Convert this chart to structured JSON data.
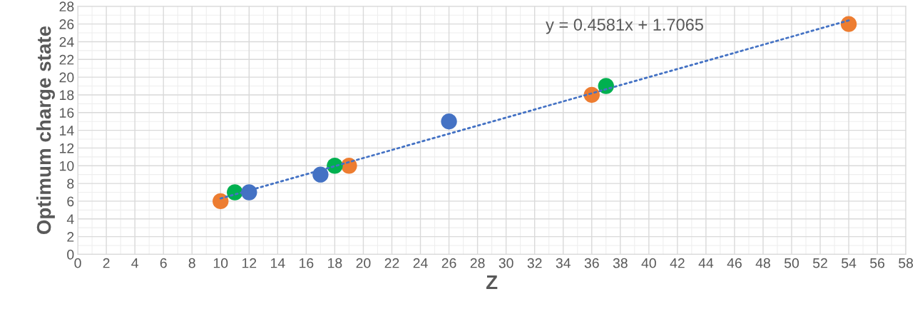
{
  "chart_data": {
    "type": "scatter",
    "xlabel": "Z",
    "ylabel": "Optimum charge state",
    "series": [
      {
        "color": "#ed7d31",
        "x": [
          10,
          19,
          36,
          54
        ],
        "values": [
          6,
          10,
          18,
          26
        ]
      },
      {
        "color": "#00b050",
        "x": [
          11,
          18,
          37
        ],
        "values": [
          7,
          10,
          19
        ]
      },
      {
        "color": "#4472c4",
        "x": [
          12,
          17,
          26
        ],
        "values": [
          7,
          9,
          15
        ]
      },
      {
        "type": "line",
        "marker": "none",
        "color": "#4472c4",
        "line_style": "dotted",
        "x": [
          10,
          54
        ],
        "values": [
          6.3,
          26.4
        ]
      }
    ],
    "marker": "circle",
    "annotations": [
      "y = 0.4581x + 1.7065"
    ],
    "xlim": [
      0,
      58
    ],
    "xticks": [
      0,
      2,
      4,
      6,
      8,
      10,
      12,
      14,
      16,
      18,
      20,
      22,
      24,
      26,
      28,
      30,
      32,
      34,
      36,
      38,
      40,
      42,
      44,
      46,
      48,
      50,
      52,
      54,
      56,
      58
    ],
    "ylim": [
      0,
      28
    ],
    "yticks": [
      0,
      2,
      4,
      6,
      8,
      10,
      12,
      14,
      16,
      18,
      20,
      22,
      24,
      26,
      28
    ],
    "grid": true
  }
}
